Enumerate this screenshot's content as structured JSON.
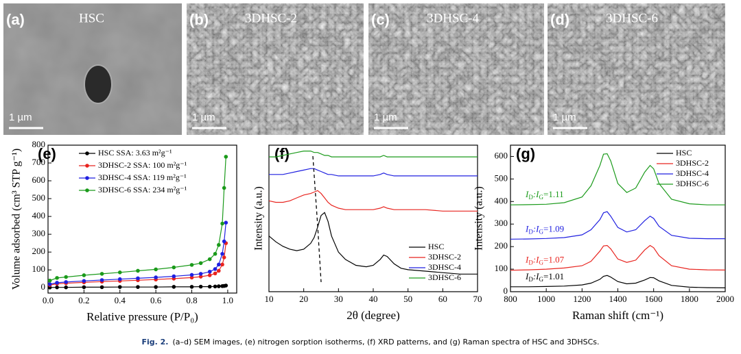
{
  "images": [
    {
      "label": "(a)",
      "title": "HSC",
      "scale": "1 µm"
    },
    {
      "label": "(b)",
      "title": "3DHSC-2",
      "scale": "1 µm"
    },
    {
      "label": "(c)",
      "title": "3DHSC-4",
      "scale": "1 µm"
    },
    {
      "label": "(d)",
      "title": "3DHSC-6",
      "scale": "1 µm"
    }
  ],
  "chart_data": [
    {
      "type": "line",
      "markers": true,
      "panel_label": "(e)",
      "x_label": "Relative pressure (P/P₀)",
      "y_label": "Volume adsorbed (cm³ STP g⁻¹)",
      "xlim": [
        0,
        1.05
      ],
      "ylim": [
        -30,
        800
      ],
      "xticks": [
        {
          "value": 0,
          "label": "0.0"
        },
        {
          "value": 0.2,
          "label": "0.2"
        },
        {
          "value": 0.4,
          "label": "0.4"
        },
        {
          "value": 0.6,
          "label": "0.6"
        },
        {
          "value": 0.8,
          "label": "0.8"
        },
        {
          "value": 1,
          "label": "1.0"
        }
      ],
      "yticks": [
        0,
        100,
        200,
        300,
        400,
        500,
        600,
        700,
        800
      ],
      "legend": "upper left",
      "x": [
        0.01,
        0.05,
        0.1,
        0.2,
        0.3,
        0.4,
        0.5,
        0.6,
        0.7,
        0.8,
        0.85,
        0.9,
        0.93,
        0.95,
        0.97,
        0.98,
        0.99
      ],
      "series": [
        {
          "name": "HSC SSA: 3.63 m²g⁻¹",
          "color": "#000000",
          "values": [
            1,
            2,
            2,
            3,
            3,
            4,
            4,
            4,
            5,
            5,
            6,
            6,
            7,
            8,
            9,
            10,
            12
          ]
        },
        {
          "name": "3DHSC-2 SSA: 100 m²g⁻¹",
          "color": "#e8231e",
          "values": [
            15,
            22,
            25,
            30,
            34,
            38,
            42,
            46,
            51,
            57,
            62,
            70,
            80,
            95,
            130,
            170,
            250
          ]
        },
        {
          "name": "3DHSC-4 SSA: 119 m²g⁻¹",
          "color": "#1f1fe0",
          "values": [
            20,
            28,
            32,
            38,
            43,
            48,
            53,
            58,
            64,
            72,
            78,
            90,
            105,
            130,
            190,
            260,
            365
          ]
        },
        {
          "name": "3DHSC-6 SSA: 234 m²g⁻¹",
          "color": "#1a9a1a",
          "values": [
            40,
            55,
            60,
            70,
            78,
            86,
            95,
            103,
            114,
            128,
            138,
            160,
            190,
            240,
            360,
            560,
            735
          ]
        }
      ]
    },
    {
      "type": "line",
      "markers": false,
      "panel_label": "(f)",
      "x_label": "2θ (degree)",
      "y_label": "Intensity (a.u.)",
      "xlim": [
        10,
        70
      ],
      "ylim": [
        0,
        100
      ],
      "xticks": [
        10,
        20,
        30,
        40,
        50,
        60,
        70
      ],
      "legend": "lower right",
      "x": [
        10,
        12,
        14,
        16,
        18,
        20,
        22,
        23,
        24,
        25,
        26,
        27,
        28,
        30,
        32,
        35,
        38,
        40,
        42,
        43,
        44,
        46,
        48,
        50,
        55,
        60,
        65,
        70
      ],
      "series": [
        {
          "name": "HSC",
          "color": "#000000",
          "values": [
            38,
            34,
            31,
            29,
            28,
            29,
            33,
            37,
            44,
            52,
            54,
            48,
            38,
            27,
            22,
            18,
            17,
            18,
            22,
            25,
            24,
            19,
            16,
            15,
            14,
            13,
            12,
            12
          ]
        },
        {
          "name": "3DHSC-2",
          "color": "#e8231e",
          "values": [
            62,
            61,
            61,
            62,
            64,
            66,
            67,
            68,
            69,
            67,
            64,
            61,
            59,
            57,
            56,
            56,
            56,
            56,
            57,
            58,
            57,
            56,
            56,
            56,
            56,
            55,
            55,
            55
          ]
        },
        {
          "name": "3DHSC-4",
          "color": "#1f1fe0",
          "values": [
            80,
            80,
            80,
            81,
            82,
            83,
            84,
            84,
            83,
            82,
            81,
            80,
            80,
            79,
            79,
            79,
            79,
            79,
            80,
            81,
            80,
            79,
            79,
            79,
            79,
            79,
            79,
            79
          ]
        },
        {
          "name": "3DHSC-6",
          "color": "#1a9a1a",
          "values": [
            92,
            92,
            93,
            94,
            95,
            96,
            96,
            95,
            95,
            94,
            93,
            93,
            92,
            92,
            92,
            92,
            92,
            92,
            92,
            93,
            92,
            92,
            92,
            92,
            92,
            92,
            92,
            92
          ]
        }
      ]
    },
    {
      "type": "line",
      "markers": false,
      "panel_label": "(g)",
      "x_label": "Raman shift (cm⁻¹)",
      "y_label": "Intensity (a.u.)",
      "xlim": [
        800,
        2000
      ],
      "ylim": [
        0,
        650
      ],
      "xticks": [
        800,
        1000,
        1200,
        1400,
        1600,
        1800,
        2000
      ],
      "yticks": [
        0,
        100,
        200,
        300,
        400,
        500,
        600
      ],
      "legend": "upper right",
      "x": [
        800,
        900,
        1000,
        1100,
        1200,
        1250,
        1300,
        1320,
        1340,
        1360,
        1400,
        1450,
        1500,
        1550,
        1580,
        1600,
        1630,
        1700,
        1800,
        1900,
        2000
      ],
      "series": [
        {
          "name": "HSC",
          "color": "#000000",
          "ratio_label": [
            "I",
            "D",
            ":I",
            "G",
            "=1.01"
          ],
          "values": [
            22,
            22,
            23,
            25,
            30,
            38,
            55,
            68,
            72,
            65,
            45,
            35,
            38,
            52,
            63,
            62,
            48,
            28,
            20,
            18,
            17
          ]
        },
        {
          "name": "3DHSC-2",
          "color": "#e8231e",
          "ratio_label": [
            "I",
            "D",
            ":I",
            "G",
            "=1.07"
          ],
          "values": [
            95,
            97,
            100,
            105,
            115,
            135,
            180,
            203,
            205,
            190,
            145,
            130,
            140,
            185,
            205,
            195,
            160,
            115,
            100,
            97,
            96
          ]
        },
        {
          "name": "3DHSC-4",
          "color": "#1f1fe0",
          "ratio_label": [
            "I",
            "D",
            ":I",
            "G",
            "=1.09"
          ],
          "values": [
            233,
            234,
            236,
            240,
            252,
            275,
            320,
            350,
            355,
            335,
            285,
            265,
            275,
            315,
            335,
            325,
            290,
            250,
            237,
            235,
            235
          ]
        },
        {
          "name": "3DHSC-6",
          "color": "#1a9a1a",
          "ratio_label": [
            "I",
            "D",
            ":I",
            "G",
            "=1.11"
          ],
          "values": [
            385,
            386,
            388,
            395,
            420,
            470,
            560,
            610,
            612,
            580,
            480,
            440,
            460,
            530,
            560,
            545,
            480,
            410,
            390,
            385,
            385
          ]
        }
      ]
    }
  ],
  "caption": {
    "lead": "Fig. 2.",
    "text": "(a–d) SEM images, (e) nitrogen sorption isotherms, (f) XRD patterns, and (g) Raman spectra of HSC and 3DHSCs."
  }
}
